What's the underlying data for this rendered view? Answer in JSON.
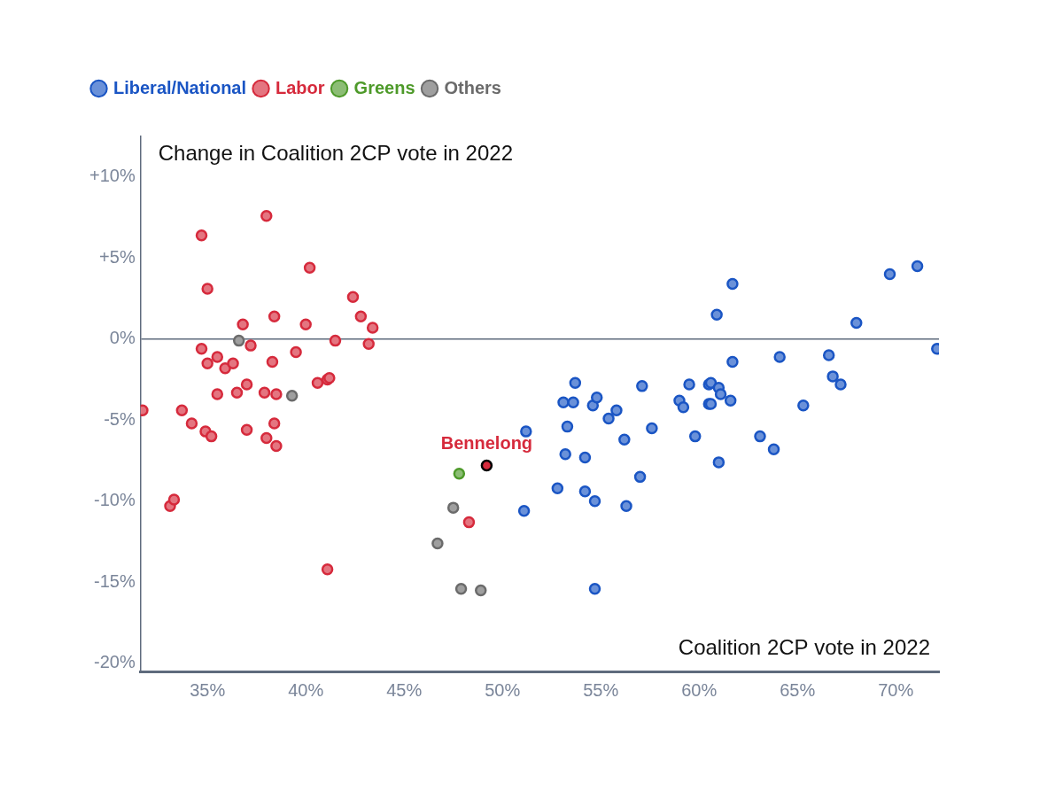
{
  "chart_data": {
    "type": "scatter",
    "x_label": "Coalition 2CP vote in 2022",
    "y_label": "Change in Coalition 2CP vote in 2022",
    "xlim": [
      31.6,
      72.2
    ],
    "ylim": [
      -20.5,
      12.5
    ],
    "xticks": [
      {
        "value": 35,
        "label": "35%"
      },
      {
        "value": 40,
        "label": "40%"
      },
      {
        "value": 45,
        "label": "45%"
      },
      {
        "value": 50,
        "label": "50%"
      },
      {
        "value": 55,
        "label": "55%"
      },
      {
        "value": 60,
        "label": "60%"
      },
      {
        "value": 65,
        "label": "65%"
      },
      {
        "value": 70,
        "label": "70%"
      }
    ],
    "yticks": [
      {
        "value": -20,
        "label": "-20%"
      },
      {
        "value": -15,
        "label": "-15%"
      },
      {
        "value": -10,
        "label": "-10%"
      },
      {
        "value": -5,
        "label": "-5%"
      },
      {
        "value": 0,
        "label": "0%"
      },
      {
        "value": 5,
        "label": "+5%"
      },
      {
        "value": 10,
        "label": "+10%"
      }
    ],
    "grid": false,
    "legend": "top-left",
    "series": [
      {
        "name": "Liberal/National",
        "color": "#1a55c4",
        "marker": "circle",
        "x": [
          51.2,
          51.1,
          53.1,
          52.8,
          53.3,
          53.2,
          53.6,
          53.7,
          54.2,
          54.2,
          54.6,
          54.8,
          54.7,
          54.7,
          55.4,
          55.8,
          56.2,
          56.3,
          57.0,
          57.1,
          57.6,
          59.0,
          59.2,
          59.5,
          59.8,
          60.5,
          60.6,
          60.5,
          60.6,
          60.9,
          61.0,
          61.1,
          61.0,
          61.6,
          61.7,
          61.7,
          63.1,
          63.8,
          64.1,
          65.3,
          66.6,
          66.8,
          67.2,
          68.0,
          69.7,
          71.1,
          72.1
        ],
        "values": [
          -5.7,
          -10.6,
          -3.9,
          -9.2,
          -5.4,
          -7.1,
          -3.9,
          -2.7,
          -7.3,
          -9.4,
          -4.1,
          -3.6,
          -10.0,
          -15.4,
          -4.9,
          -4.4,
          -6.2,
          -10.3,
          -8.5,
          -2.9,
          -5.5,
          -3.8,
          -4.2,
          -2.8,
          -6.0,
          -2.8,
          -2.7,
          -4.0,
          -4.0,
          1.5,
          -3.0,
          -3.4,
          -7.6,
          -3.8,
          3.4,
          -1.4,
          -6.0,
          -6.8,
          -1.1,
          -4.1,
          -1.0,
          -2.3,
          -2.8,
          1.0,
          4.0,
          4.5,
          -0.6
        ]
      },
      {
        "name": "Labor",
        "color": "#d62a3c",
        "marker": "circle",
        "x": [
          31.7,
          33.1,
          33.3,
          34.7,
          35.0,
          34.7,
          35.0,
          33.7,
          34.2,
          34.9,
          35.2,
          35.5,
          35.5,
          35.9,
          36.3,
          36.5,
          36.8,
          37.2,
          37.0,
          37.0,
          38.0,
          37.9,
          38.0,
          38.4,
          38.3,
          38.5,
          38.4,
          38.5,
          39.5,
          40.0,
          40.2,
          40.6,
          41.1,
          41.2,
          41.1,
          41.5,
          42.4,
          42.8,
          43.4,
          43.2,
          48.3
        ],
        "values": [
          -4.4,
          -10.3,
          -9.9,
          6.4,
          3.1,
          -0.6,
          -1.5,
          -4.4,
          -5.2,
          -5.7,
          -6.0,
          -1.1,
          -3.4,
          -1.8,
          -1.5,
          -3.3,
          0.9,
          -0.4,
          -2.8,
          -5.6,
          7.6,
          -3.3,
          -6.1,
          1.4,
          -1.4,
          -3.4,
          -5.2,
          -6.6,
          -0.8,
          0.9,
          4.4,
          -2.7,
          -2.5,
          -2.4,
          -14.2,
          -0.1,
          2.6,
          1.4,
          0.7,
          -0.3,
          -11.3
        ]
      },
      {
        "name": "Greens",
        "color": "#4e9a2a",
        "marker": "circle",
        "x": [
          47.8
        ],
        "values": [
          -8.3
        ]
      },
      {
        "name": "Others",
        "color": "#6b6b6b",
        "marker": "circle",
        "x": [
          36.6,
          39.3,
          47.5,
          46.7,
          47.9,
          48.9
        ],
        "values": [
          -0.1,
          -3.5,
          -10.4,
          -12.6,
          -15.4,
          -15.5
        ]
      }
    ],
    "annotations": [
      {
        "text": "Bennelong",
        "x": 49.2,
        "y": -7.8,
        "color": "#d62a3c"
      }
    ]
  }
}
